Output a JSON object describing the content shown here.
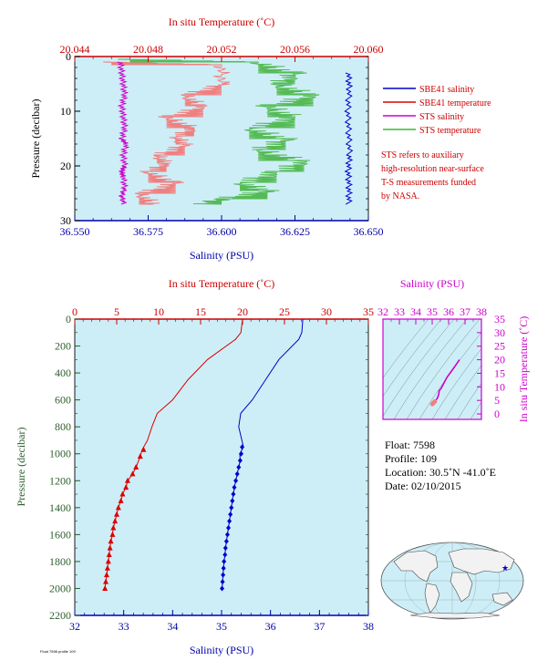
{
  "chart_data": [
    {
      "type": "line",
      "title": "",
      "top_axis": {
        "label": "In situ Temperature (˚C)",
        "range": [
          20.044,
          20.06
        ],
        "ticks": [
          "20.044",
          "20.048",
          "20.052",
          "20.056",
          "20.060"
        ]
      },
      "bottom_axis": {
        "label": "Salinity (PSU)",
        "range": [
          36.55,
          36.65
        ],
        "ticks": [
          "36.550",
          "36.575",
          "36.600",
          "36.625",
          "36.650"
        ]
      },
      "y_axis": {
        "label": "Pressure (decibar)",
        "range": [
          0,
          30
        ],
        "inverted": true,
        "ticks": [
          "0",
          "10",
          "20",
          "30"
        ]
      },
      "legend": {
        "placement": "right",
        "entries": [
          {
            "name": "SBE41 salinity",
            "color": "#0000cc"
          },
          {
            "name": "SBE41 temperature",
            "color": "#dd0000"
          },
          {
            "name": "STS salinity",
            "color": "#cc00cc"
          },
          {
            "name": "STS temperature",
            "color": "#33bb33"
          }
        ]
      },
      "note_lines": [
        "STS refers to auxiliary",
        "high-resolution near-surface",
        "T-S measurements funded",
        "by NASA."
      ],
      "series": [
        {
          "name": "SBE41 salinity",
          "axis": "salinity",
          "x": [
            36.6432,
            36.6435,
            36.643,
            36.6433,
            36.6436,
            36.6431,
            36.6434,
            36.6433
          ],
          "y": [
            3,
            6,
            10,
            14,
            18,
            21,
            24,
            27
          ]
        },
        {
          "name": "SBE41 temperature",
          "axis": "temperature",
          "x": [
            20.046,
            20.052,
            20.052,
            20.05,
            20.051,
            20.049,
            20.0505,
            20.0495,
            20.05,
            20.0485,
            20.049,
            20.048,
            20.0495,
            20.0475,
            20.0485
          ],
          "y": [
            1,
            1.5,
            5,
            7,
            9,
            11,
            13,
            14.5,
            16,
            18,
            19.5,
            21,
            23,
            25,
            27
          ]
        },
        {
          "name": "STS salinity",
          "axis": "salinity",
          "x": [
            36.5655,
            36.566,
            36.5665,
            36.567,
            36.566,
            36.5665,
            36.567,
            36.566,
            36.5675,
            36.5665,
            36.567,
            36.566,
            36.5665,
            36.567,
            36.566,
            36.5668
          ],
          "y": [
            1,
            3,
            5,
            7,
            9,
            11,
            13,
            15,
            16,
            18,
            20,
            21,
            22,
            24,
            25.5,
            27
          ]
        },
        {
          "name": "STS temperature",
          "axis": "temperature",
          "x": [
            20.047,
            20.054,
            20.056,
            20.055,
            20.057,
            20.0545,
            20.056,
            20.0535,
            20.0555,
            20.054,
            20.0565,
            20.055,
            20.053,
            20.0545,
            20.052,
            20.051
          ],
          "y": [
            0.5,
            1,
            3,
            5,
            7,
            9,
            11,
            13,
            15,
            17,
            19,
            21,
            23,
            24.5,
            26,
            27
          ]
        }
      ]
    },
    {
      "type": "line",
      "title": "",
      "top_axis": {
        "label": "In situ Temperature (˚C)",
        "range": [
          0,
          35
        ],
        "ticks": [
          "0",
          "5",
          "10",
          "15",
          "20",
          "25",
          "30",
          "35"
        ]
      },
      "bottom_axis": {
        "label": "Salinity (PSU)",
        "range": [
          32,
          38
        ],
        "ticks": [
          "32",
          "33",
          "34",
          "35",
          "36",
          "37",
          "38"
        ]
      },
      "y_axis": {
        "label": "Pressure (decibar)",
        "range": [
          0,
          2200
        ],
        "inverted": true,
        "ticks": [
          "0",
          "200",
          "400",
          "600",
          "800",
          "1000",
          "1200",
          "1400",
          "1600",
          "1800",
          "2000",
          "2200"
        ]
      },
      "series": [
        {
          "name": "",
          "color": "#dd0000",
          "marker": "triangle",
          "axis": "temperature",
          "x": [
            20.0,
            19.8,
            19.0,
            16.0,
            13.5,
            11.5,
            10.0,
            9.2,
            8.5,
            8.2,
            7.8,
            7.3,
            6.9,
            6.3,
            6.1,
            5.7,
            5.5,
            5.2,
            5.0,
            4.8,
            4.6,
            4.5,
            4.3,
            4.2,
            4.1,
            4.0,
            3.9,
            3.8,
            3.7,
            3.6
          ],
          "y": [
            0,
            100,
            150,
            300,
            450,
            600,
            700,
            800,
            900,
            970,
            1020,
            1100,
            1150,
            1200,
            1250,
            1300,
            1350,
            1400,
            1450,
            1500,
            1550,
            1600,
            1650,
            1700,
            1750,
            1800,
            1850,
            1900,
            1950,
            2000
          ]
        },
        {
          "name": "",
          "color": "#0000cc",
          "marker": "diamond",
          "axis": "salinity",
          "x": [
            36.66,
            36.64,
            36.55,
            36.2,
            35.9,
            35.6,
            35.42,
            35.35,
            35.42,
            35.4,
            35.38,
            35.35,
            35.32,
            35.29,
            35.26,
            35.24,
            35.22,
            35.2,
            35.18,
            35.16,
            35.14,
            35.12,
            35.1,
            35.08,
            35.07,
            35.05,
            35.04,
            35.03,
            35.02,
            35.01
          ],
          "y": [
            0,
            100,
            150,
            300,
            450,
            600,
            700,
            800,
            950,
            1000,
            1050,
            1100,
            1150,
            1200,
            1250,
            1300,
            1350,
            1400,
            1450,
            1500,
            1550,
            1600,
            1650,
            1700,
            1750,
            1800,
            1850,
            1900,
            1950,
            2000
          ]
        }
      ]
    },
    {
      "type": "line",
      "title": "",
      "top_axis": {
        "label": "Salinity (PSU)",
        "range": [
          32,
          38
        ],
        "ticks": [
          "32",
          "33",
          "34",
          "35",
          "36",
          "37",
          "38"
        ]
      },
      "right_axis": {
        "label": "In situ Temperature (˚C)",
        "range": [
          -5,
          35
        ],
        "ticks": [
          "0",
          "5",
          "10",
          "15",
          "20",
          "25",
          "30",
          "35"
        ]
      },
      "series": [
        {
          "name": "",
          "color": "#cc00cc",
          "axis": "ts",
          "x": [
            35.01,
            35.05,
            35.1,
            35.16,
            35.24,
            35.32,
            35.4,
            35.42,
            35.55,
            35.9,
            36.2,
            36.55,
            36.66
          ],
          "y": [
            3.6,
            3.9,
            4.2,
            4.6,
            5.2,
            5.9,
            7.3,
            8.5,
            9.5,
            13.5,
            16.0,
            19.0,
            20.0
          ]
        }
      ]
    }
  ],
  "info": {
    "float": "Float:  7598",
    "profile": "Profile:  109",
    "location": "Location:  30.5˚N  -41.0˚E",
    "date": "Date:  02/10/2015"
  },
  "footer_text": "Float 7598 profile 109"
}
